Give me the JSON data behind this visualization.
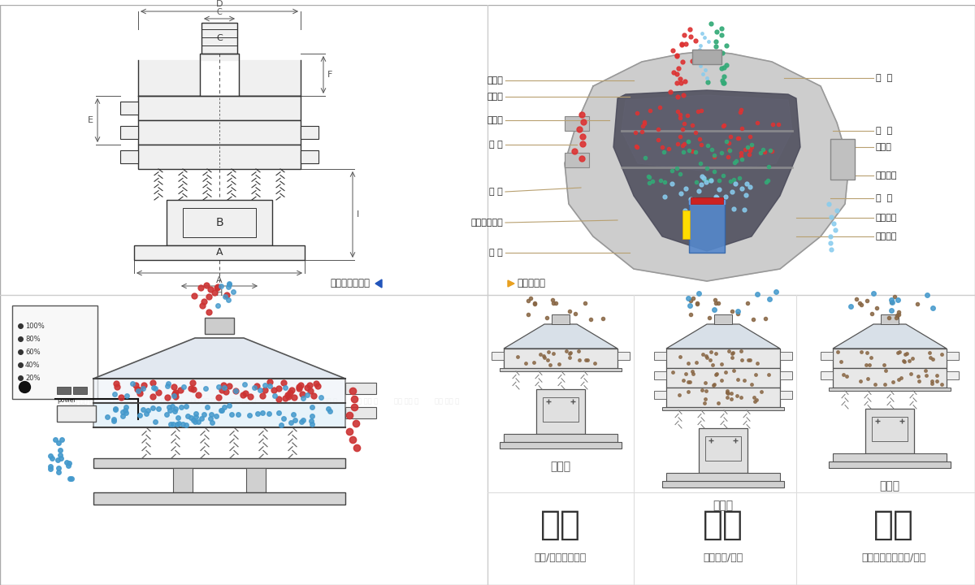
{
  "bg_color": "#ffffff",
  "top_right_left_labels": [
    "进料口",
    "防尘盖",
    "出料口",
    "束 环",
    "弹 簧",
    "运输固定贸栓",
    "机 座"
  ],
  "top_right_right_labels": [
    "筛  网",
    "网  架",
    "加重块",
    "上部重锤",
    "筛  盘",
    "振动电机",
    "下部重锤"
  ],
  "label1": "外形尺寸示意图",
  "label2": "结构示意图",
  "bottom_titles": [
    "分级",
    "过滤",
    "除杂"
  ],
  "bottom_subtitles": [
    "单层式",
    "三层式",
    "双层式"
  ],
  "bottom_descs": [
    "颗粒/粉末准确分级",
    "去除异物/结块",
    "去除液体中的颗粒/异物"
  ],
  "line_color": "#333333",
  "dim_color": "#555555",
  "label_line_color": "#b8a070",
  "red_color": "#cc3333",
  "blue_color": "#4499cc",
  "dark_color": "#555555",
  "teal_color": "#33aa88"
}
